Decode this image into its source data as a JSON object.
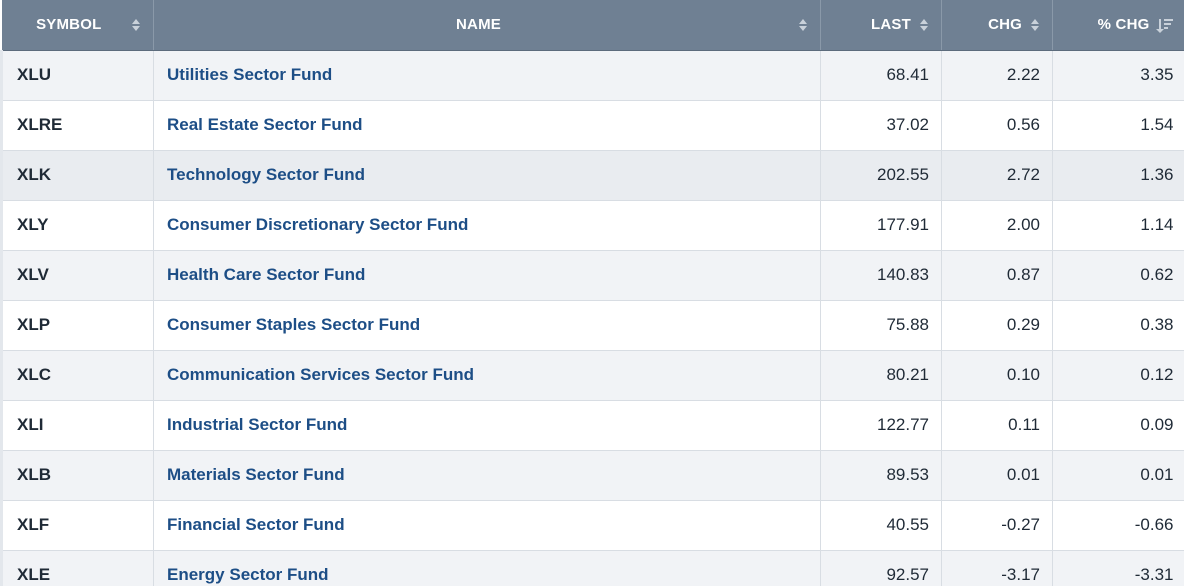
{
  "columns": {
    "symbol": "SYMBOL",
    "name": "NAME",
    "last": "LAST",
    "chg": "CHG",
    "pct_chg": "% CHG"
  },
  "sort": {
    "column": "pct_chg",
    "direction": "descending"
  },
  "rows": [
    {
      "symbol": "XLU",
      "name": "Utilities Sector Fund",
      "last": "68.41",
      "chg": "2.22",
      "pct_chg": "3.35"
    },
    {
      "symbol": "XLRE",
      "name": "Real Estate Sector Fund",
      "last": "37.02",
      "chg": "0.56",
      "pct_chg": "1.54"
    },
    {
      "symbol": "XLK",
      "name": "Technology Sector Fund",
      "last": "202.55",
      "chg": "2.72",
      "pct_chg": "1.36"
    },
    {
      "symbol": "XLY",
      "name": "Consumer Discretionary Sector Fund",
      "last": "177.91",
      "chg": "2.00",
      "pct_chg": "1.14"
    },
    {
      "symbol": "XLV",
      "name": "Health Care Sector Fund",
      "last": "140.83",
      "chg": "0.87",
      "pct_chg": "0.62"
    },
    {
      "symbol": "XLP",
      "name": "Consumer Staples Sector Fund",
      "last": "75.88",
      "chg": "0.29",
      "pct_chg": "0.38"
    },
    {
      "symbol": "XLC",
      "name": "Communication Services Sector Fund",
      "last": "80.21",
      "chg": "0.10",
      "pct_chg": "0.12"
    },
    {
      "symbol": "XLI",
      "name": "Industrial Sector Fund",
      "last": "122.77",
      "chg": "0.11",
      "pct_chg": "0.09"
    },
    {
      "symbol": "XLB",
      "name": "Materials Sector Fund",
      "last": "89.53",
      "chg": "0.01",
      "pct_chg": "0.01"
    },
    {
      "symbol": "XLF",
      "name": "Financial Sector Fund",
      "last": "40.55",
      "chg": "-0.27",
      "pct_chg": "-0.66"
    },
    {
      "symbol": "XLE",
      "name": "Energy Sector Fund",
      "last": "92.57",
      "chg": "-3.17",
      "pct_chg": "-3.31"
    }
  ],
  "colors": {
    "header_bg": "#6f8093",
    "name_link": "#1d4e86",
    "row_alt": "#f1f3f6"
  }
}
